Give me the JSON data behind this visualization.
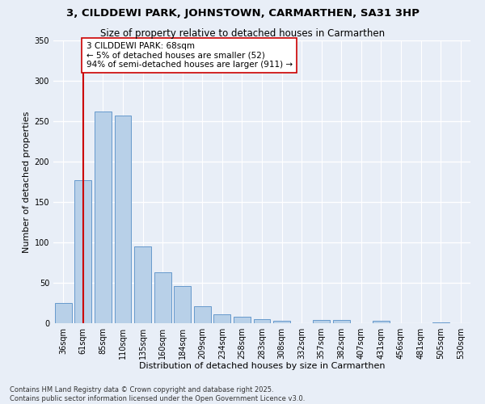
{
  "title_line1": "3, CILDDEWI PARK, JOHNSTOWN, CARMARTHEN, SA31 3HP",
  "title_line2": "Size of property relative to detached houses in Carmarthen",
  "xlabel": "Distribution of detached houses by size in Carmarthen",
  "ylabel": "Number of detached properties",
  "categories": [
    "36sqm",
    "61sqm",
    "85sqm",
    "110sqm",
    "135sqm",
    "160sqm",
    "184sqm",
    "209sqm",
    "234sqm",
    "258sqm",
    "283sqm",
    "308sqm",
    "332sqm",
    "357sqm",
    "382sqm",
    "407sqm",
    "431sqm",
    "456sqm",
    "481sqm",
    "505sqm",
    "530sqm"
  ],
  "values": [
    25,
    177,
    262,
    257,
    95,
    63,
    46,
    21,
    11,
    8,
    5,
    3,
    0,
    4,
    4,
    0,
    3,
    0,
    0,
    1,
    0
  ],
  "bar_color": "#b8d0e8",
  "bar_edge_color": "#6699cc",
  "ylim": [
    0,
    350
  ],
  "yticks": [
    0,
    50,
    100,
    150,
    200,
    250,
    300,
    350
  ],
  "vline_x": 1.0,
  "vline_color": "#cc0000",
  "annotation_text": "3 CILDDEWI PARK: 68sqm\n← 5% of detached houses are smaller (52)\n94% of semi-detached houses are larger (911) →",
  "annotation_box_facecolor": "#ffffff",
  "annotation_box_edgecolor": "#cc0000",
  "footer_line1": "Contains HM Land Registry data © Crown copyright and database right 2025.",
  "footer_line2": "Contains public sector information licensed under the Open Government Licence v3.0.",
  "bg_color": "#e8eef7",
  "plot_bg_color": "#e8eef7",
  "grid_color": "#ffffff",
  "title_fontsize": 9.5,
  "subtitle_fontsize": 8.5,
  "axis_label_fontsize": 8,
  "tick_fontsize": 7,
  "annotation_fontsize": 7.5,
  "footer_fontsize": 6
}
